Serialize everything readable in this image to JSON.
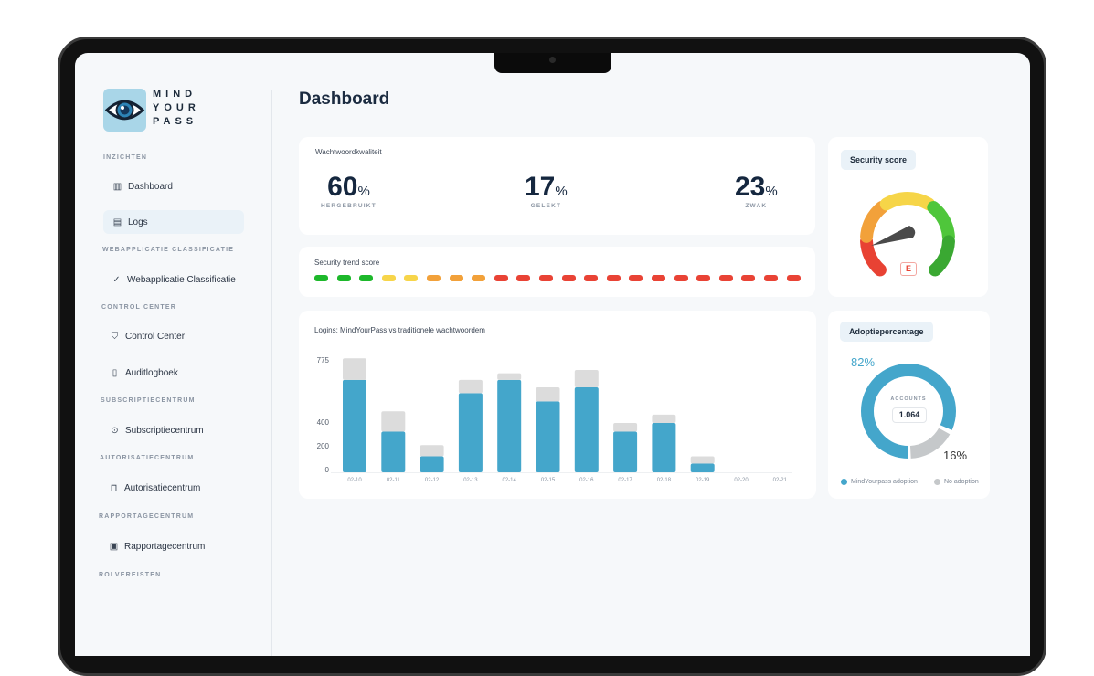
{
  "brand": {
    "lines": [
      "MIND",
      "YOUR",
      "PASS"
    ]
  },
  "sidebar": {
    "sections": [
      {
        "title": "INZICHTEN",
        "items": [
          {
            "label": "Dashboard",
            "icon": "bar-chart-icon"
          },
          {
            "label": "Logs",
            "icon": "log-window-icon",
            "active": true
          }
        ]
      },
      {
        "title": "WEBAPPLICATIE CLASSIFICATIE",
        "items": [
          {
            "label": "Webapplicatie Classificatie",
            "icon": "double-check-icon"
          }
        ]
      },
      {
        "title": "CONTROL CENTER",
        "items": [
          {
            "label": "Control Center",
            "icon": "shield-icon"
          },
          {
            "label": "Auditlogboek",
            "icon": "audit-search-icon"
          }
        ]
      },
      {
        "title": "SUBSCRIPTIECENTRUM",
        "items": [
          {
            "label": "Subscriptiecentrum",
            "icon": "magnifier-icon"
          }
        ]
      },
      {
        "title": "AUTORISATIECENTRUM",
        "items": [
          {
            "label": "Autorisatiecentrum",
            "icon": "lock-icon"
          }
        ]
      },
      {
        "title": "RAPPORTAGECENTRUM",
        "items": [
          {
            "label": "Rapportagecentrum",
            "icon": "report-icon"
          }
        ]
      },
      {
        "title": "ROLVEREISTEN",
        "items": []
      }
    ]
  },
  "page": {
    "title": "Dashboard"
  },
  "quality": {
    "title": "Wachtwoordkwaliteit",
    "stats": [
      {
        "value": "60",
        "unit": "%",
        "label": "HERGEBRUIKT"
      },
      {
        "value": "17",
        "unit": "%",
        "label": "GELEKT"
      },
      {
        "value": "23",
        "unit": "%",
        "label": "ZWAK"
      }
    ]
  },
  "trend": {
    "title": "Security trend score",
    "levels": [
      "green",
      "green",
      "green",
      "yellow",
      "yellow",
      "orange",
      "orange",
      "orange",
      "red",
      "red",
      "red",
      "red",
      "red",
      "red",
      "red",
      "red",
      "red",
      "red",
      "red",
      "red",
      "red",
      "red"
    ],
    "colors": {
      "green": "#1db82b",
      "yellow": "#f7d54a",
      "orange": "#f2a13a",
      "red": "#e94335"
    }
  },
  "security": {
    "title": "Security score",
    "grade": "E",
    "colors": [
      "#e84233",
      "#f2a13a",
      "#f6d548",
      "#4fc63b",
      "#3aa832"
    ]
  },
  "adoption": {
    "title": "Adoptiepercentage",
    "adopted_pct": "82%",
    "no_pct": "16%",
    "center_label": "ACCOUNTS",
    "accounts": "1.064",
    "adopted": 82,
    "no": 16,
    "legend": [
      "MindYourpass adoption",
      "No adoption"
    ],
    "colors": {
      "adopted": "#44a6cb",
      "no": "#c5c8ca"
    }
  },
  "chart_data": {
    "type": "bar",
    "stacked": true,
    "title": "Logins: MindYourPass vs traditionele wachtwoordem",
    "categories": [
      "02-10",
      "02-11",
      "02-12",
      "02-13",
      "02-14",
      "02-15",
      "02-16",
      "02-17",
      "02-18",
      "02-19",
      "02-20",
      "02-21"
    ],
    "yticks": [
      "775",
      "400",
      "200",
      "0"
    ],
    "series": [
      {
        "color": "#44a6cb",
        "values": [
          660,
          330,
          130,
          580,
          660,
          530,
          615,
          330,
          400,
          70,
          0,
          0
        ]
      },
      {
        "color": "#dcdcdc",
        "values": [
          130,
          140,
          90,
          80,
          40,
          85,
          105,
          70,
          50,
          60,
          0,
          0
        ]
      }
    ],
    "grid": false
  }
}
